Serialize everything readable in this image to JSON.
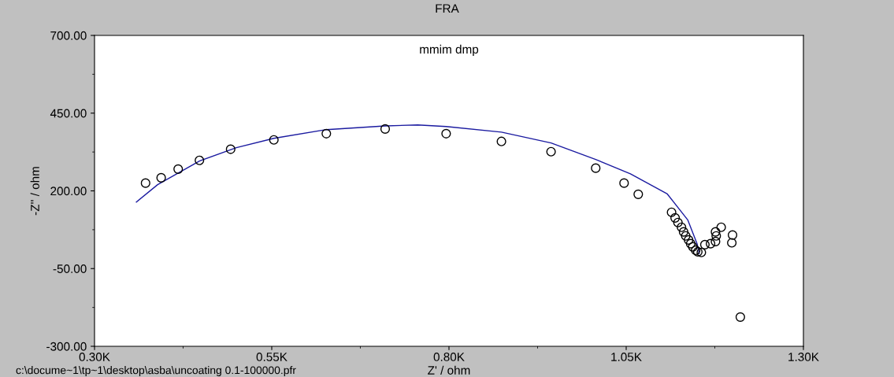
{
  "chart_data": {
    "type": "scatter",
    "title": "FRA",
    "subtitle": "mmim dmp",
    "xlabel": "Z' / ohm",
    "ylabel": "-Z'' / ohm",
    "annotations": [
      "c:\\docume~1\\tp~1\\desktop\\asba\\uncoating 0.1-100000.pfr"
    ],
    "series": [
      {
        "marker": "circle",
        "color": "#000000",
        "x": [
          372,
          394,
          418,
          448,
          492,
          553,
          627,
          710,
          796,
          874,
          944,
          1007,
          1047,
          1067,
          1114,
          1119,
          1123,
          1128,
          1131,
          1134,
          1138,
          1141,
          1144,
          1148,
          1151,
          1156,
          1161,
          1169,
          1176,
          1177,
          1176,
          1184,
          1200,
          1199,
          1211
        ],
        "values": [
          225,
          242,
          270,
          298,
          334,
          364,
          384,
          399,
          384,
          359,
          326,
          273,
          225,
          189,
          131,
          113,
          98,
          83,
          68,
          55,
          42,
          30,
          20,
          9,
          4,
          2,
          27,
          30,
          37,
          55,
          68,
          83,
          58,
          33,
          -206
        ]
      },
      {
        "type": "line",
        "marker": "none",
        "line_style": "solid",
        "color": "#1a1aa0",
        "x": [
          359,
          389,
          448,
          500,
          553,
          627,
          710,
          756,
          796,
          874,
          944,
          1007,
          1056,
          1108,
          1137,
          1150,
          1153
        ],
        "values": [
          164,
          220,
          296,
          339,
          369,
          397,
          409,
          412,
          407,
          389,
          354,
          301,
          255,
          190,
          106,
          30,
          -2
        ]
      }
    ],
    "xlim": [
      300,
      1300
    ],
    "xticks": [
      {
        "value": 300,
        "label": "0.30K"
      },
      {
        "value": 550,
        "label": "0.55K"
      },
      {
        "value": 800,
        "label": "0.80K"
      },
      {
        "value": 1050,
        "label": "1.05K"
      },
      {
        "value": 1300,
        "label": "1.30K"
      }
    ],
    "ylim": [
      -300,
      700
    ],
    "yticks": [
      {
        "value": -300,
        "label": "-300.00"
      },
      {
        "value": -50,
        "label": "-50.00"
      },
      {
        "value": 200,
        "label": "200.00"
      },
      {
        "value": 450,
        "label": "450.00"
      },
      {
        "value": 700,
        "label": "700.00"
      }
    ],
    "grid": false,
    "legend": false
  }
}
